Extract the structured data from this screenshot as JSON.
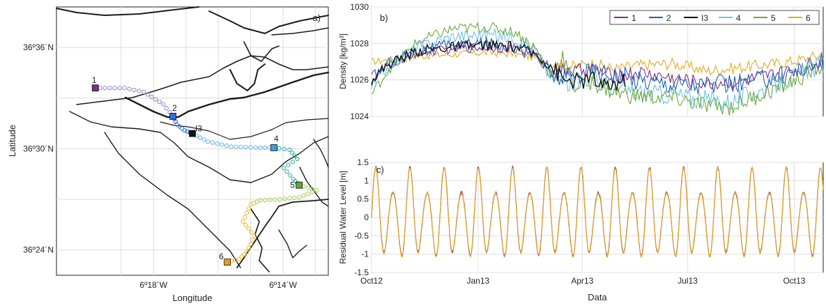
{
  "chart_data": [
    {
      "panel": "a)",
      "type": "map",
      "xlabel": "Longitude",
      "ylabel": "Latitude",
      "x_ticks": [
        "6º18´W",
        "6º14´W"
      ],
      "y_ticks": [
        "36º36´N",
        "36º30´N",
        "36º24´N"
      ],
      "xlim": [
        -6.35,
        -6.21
      ],
      "ylim": [
        36.375,
        36.64
      ],
      "grid": true,
      "stations": [
        {
          "label": "1",
          "lon": -6.33,
          "lat": 36.56,
          "color": "#7b2f8e"
        },
        {
          "label": "2",
          "lon": -6.29,
          "lat": 36.532,
          "color": "#2e6fd0"
        },
        {
          "label": "I3",
          "lon": -6.28,
          "lat": 36.515,
          "color": "#111111"
        },
        {
          "label": "4",
          "lon": -6.238,
          "lat": 36.501,
          "color": "#3aa0d8"
        },
        {
          "label": "5",
          "lon": -6.225,
          "lat": 36.464,
          "color": "#5fa53a"
        },
        {
          "label": "6",
          "lon": -6.262,
          "lat": 36.388,
          "color": "#e0a020"
        }
      ],
      "track_segments": [
        {
          "color": "#9b8ad0",
          "points": [
            [
              -6.33,
              36.56
            ],
            [
              -6.315,
              36.56
            ],
            [
              -6.305,
              36.556
            ],
            [
              -6.295,
              36.544
            ],
            [
              -6.29,
              36.532
            ]
          ]
        },
        {
          "color": "#3a6fe0",
          "points": [
            [
              -6.29,
              36.532
            ],
            [
              -6.288,
              36.524
            ],
            [
              -6.284,
              36.518
            ],
            [
              -6.28,
              36.515
            ]
          ]
        },
        {
          "color": "#6cb8e8",
          "points": [
            [
              -6.28,
              36.515
            ],
            [
              -6.272,
              36.507
            ],
            [
              -6.26,
              36.502
            ],
            [
              -6.245,
              36.501
            ],
            [
              -6.238,
              36.501
            ]
          ]
        },
        {
          "color": "#2bb6a6",
          "points": [
            [
              -6.238,
              36.501
            ],
            [
              -6.23,
              36.499
            ],
            [
              -6.226,
              36.49
            ],
            [
              -6.233,
              36.481
            ],
            [
              -6.228,
              36.47
            ],
            [
              -6.225,
              36.464
            ]
          ]
        },
        {
          "color": "#a8d060",
          "points": [
            [
              -6.225,
              36.464
            ],
            [
              -6.216,
              36.459
            ],
            [
              -6.225,
              36.452
            ],
            [
              -6.235,
              36.45
            ],
            [
              -6.245,
              36.449
            ],
            [
              -6.25,
              36.445
            ]
          ]
        },
        {
          "color": "#e8c040",
          "points": [
            [
              -6.25,
              36.445
            ],
            [
              -6.254,
              36.428
            ],
            [
              -6.248,
              36.414
            ],
            [
              -6.252,
              36.398
            ],
            [
              -6.256,
              36.391
            ],
            [
              -6.262,
              36.388
            ]
          ]
        }
      ]
    },
    {
      "panel": "b)",
      "type": "line",
      "ylabel": "Density [kg/m³]",
      "ylim": [
        1024,
        1030
      ],
      "y_ticks": [
        1024,
        1026,
        1028,
        1030
      ],
      "grid": true,
      "legend": "top-right",
      "x_day_range": [
        0,
        390
      ],
      "series": [
        {
          "name": "1",
          "color": "#7b2f8e"
        },
        {
          "name": "2",
          "color": "#1f5fb5"
        },
        {
          "name": "I3",
          "color": "#111111"
        },
        {
          "name": "4",
          "color": "#6cc0ea"
        },
        {
          "name": "5",
          "color": "#6aa83a"
        },
        {
          "name": "6",
          "color": "#e8a820"
        }
      ],
      "profiles": {
        "1": [
          [
            0,
            1026.0
          ],
          [
            15,
            1026.8
          ],
          [
            40,
            1027.5
          ],
          [
            70,
            1027.7
          ],
          [
            100,
            1027.8
          ],
          [
            125,
            1027.7
          ],
          [
            142,
            1027.4
          ],
          [
            155,
            1026.6
          ],
          [
            170,
            1026.4
          ],
          [
            190,
            1026.6
          ],
          [
            210,
            1026.2
          ],
          [
            230,
            1026.4
          ],
          [
            260,
            1026.1
          ],
          [
            290,
            1025.8
          ],
          [
            320,
            1025.9
          ],
          [
            350,
            1026.3
          ],
          [
            370,
            1026.6
          ],
          [
            390,
            1027.0
          ]
        ],
        "2": [
          [
            0,
            1026.1
          ],
          [
            15,
            1026.9
          ],
          [
            40,
            1027.6
          ],
          [
            70,
            1027.9
          ],
          [
            100,
            1028.0
          ],
          [
            125,
            1027.8
          ],
          [
            142,
            1027.3
          ],
          [
            155,
            1026.2
          ],
          [
            170,
            1026.1
          ],
          [
            190,
            1026.5
          ],
          [
            210,
            1026.3
          ],
          [
            230,
            1026.0
          ],
          [
            260,
            1025.8
          ],
          [
            290,
            1025.7
          ],
          [
            320,
            1025.8
          ],
          [
            350,
            1026.2
          ],
          [
            370,
            1026.6
          ],
          [
            390,
            1027.0
          ]
        ],
        "I3": [
          [
            0,
            1026.0
          ],
          [
            15,
            1026.9
          ],
          [
            40,
            1027.6
          ],
          [
            70,
            1027.8
          ],
          [
            100,
            1027.9
          ],
          [
            125,
            1027.8
          ],
          [
            142,
            1027.4
          ],
          [
            155,
            1026.8
          ],
          [
            165,
            1026.0
          ],
          [
            180,
            1025.9
          ],
          [
            190,
            1026.1
          ],
          [
            200,
            1025.6
          ],
          [
            210,
            1025.8
          ],
          [
            220,
            1026.0
          ]
        ],
        "4": [
          [
            0,
            1025.6
          ],
          [
            15,
            1026.8
          ],
          [
            40,
            1027.8
          ],
          [
            70,
            1028.4
          ],
          [
            100,
            1028.5
          ],
          [
            125,
            1028.3
          ],
          [
            142,
            1027.6
          ],
          [
            155,
            1026.2
          ],
          [
            170,
            1025.9
          ],
          [
            190,
            1026.2
          ],
          [
            210,
            1025.5
          ],
          [
            230,
            1025.3
          ],
          [
            260,
            1025.2
          ],
          [
            290,
            1024.9
          ],
          [
            310,
            1024.8
          ],
          [
            340,
            1025.5
          ],
          [
            370,
            1026.3
          ],
          [
            390,
            1026.9
          ]
        ],
        "5": [
          [
            0,
            1025.2
          ],
          [
            15,
            1026.6
          ],
          [
            40,
            1028.1
          ],
          [
            70,
            1028.8
          ],
          [
            100,
            1028.9
          ],
          [
            125,
            1028.6
          ],
          [
            142,
            1027.7
          ],
          [
            155,
            1026.1
          ],
          [
            165,
            1027.3
          ],
          [
            175,
            1025.6
          ],
          [
            190,
            1025.9
          ],
          [
            210,
            1025.3
          ],
          [
            230,
            1025.1
          ],
          [
            260,
            1025.0
          ],
          [
            290,
            1024.6
          ],
          [
            310,
            1024.5
          ],
          [
            340,
            1025.3
          ],
          [
            370,
            1026.1
          ],
          [
            390,
            1026.8
          ]
        ],
        "6": [
          [
            0,
            1027.0
          ],
          [
            15,
            1027.1
          ],
          [
            40,
            1027.3
          ],
          [
            70,
            1027.4
          ],
          [
            100,
            1027.5
          ],
          [
            125,
            1027.4
          ],
          [
            142,
            1027.2
          ],
          [
            155,
            1026.9
          ],
          [
            170,
            1026.7
          ],
          [
            190,
            1026.9
          ],
          [
            210,
            1026.6
          ],
          [
            230,
            1026.8
          ],
          [
            260,
            1026.9
          ],
          [
            290,
            1026.5
          ],
          [
            320,
            1026.7
          ],
          [
            350,
            1026.9
          ],
          [
            370,
            1027.1
          ],
          [
            390,
            1027.4
          ]
        ]
      }
    },
    {
      "panel": "c)",
      "type": "line",
      "xlabel": "Data",
      "ylabel": "Residual Water Level [m]",
      "ylim": [
        -1.5,
        1.5
      ],
      "y_ticks": [
        -1.5,
        -1,
        -0.5,
        0,
        0.5,
        1,
        1.5
      ],
      "x_ticks": [
        {
          "label": "Oct12",
          "day": 0
        },
        {
          "label": "Jan13",
          "day": 92
        },
        {
          "label": "Apr13",
          "day": 182
        },
        {
          "label": "Jul13",
          "day": 273
        },
        {
          "label": "Oct13",
          "day": 365
        }
      ],
      "x_day_range": [
        0,
        390
      ],
      "grid": true,
      "series": [
        {
          "name": "1",
          "color": "#7b2f8e"
        },
        {
          "name": "6",
          "color": "#e8a820"
        }
      ],
      "spring_neap_period_days": 14.77,
      "spring_amplitude": 1.35,
      "neap_amplitude": 0.65
    }
  ]
}
